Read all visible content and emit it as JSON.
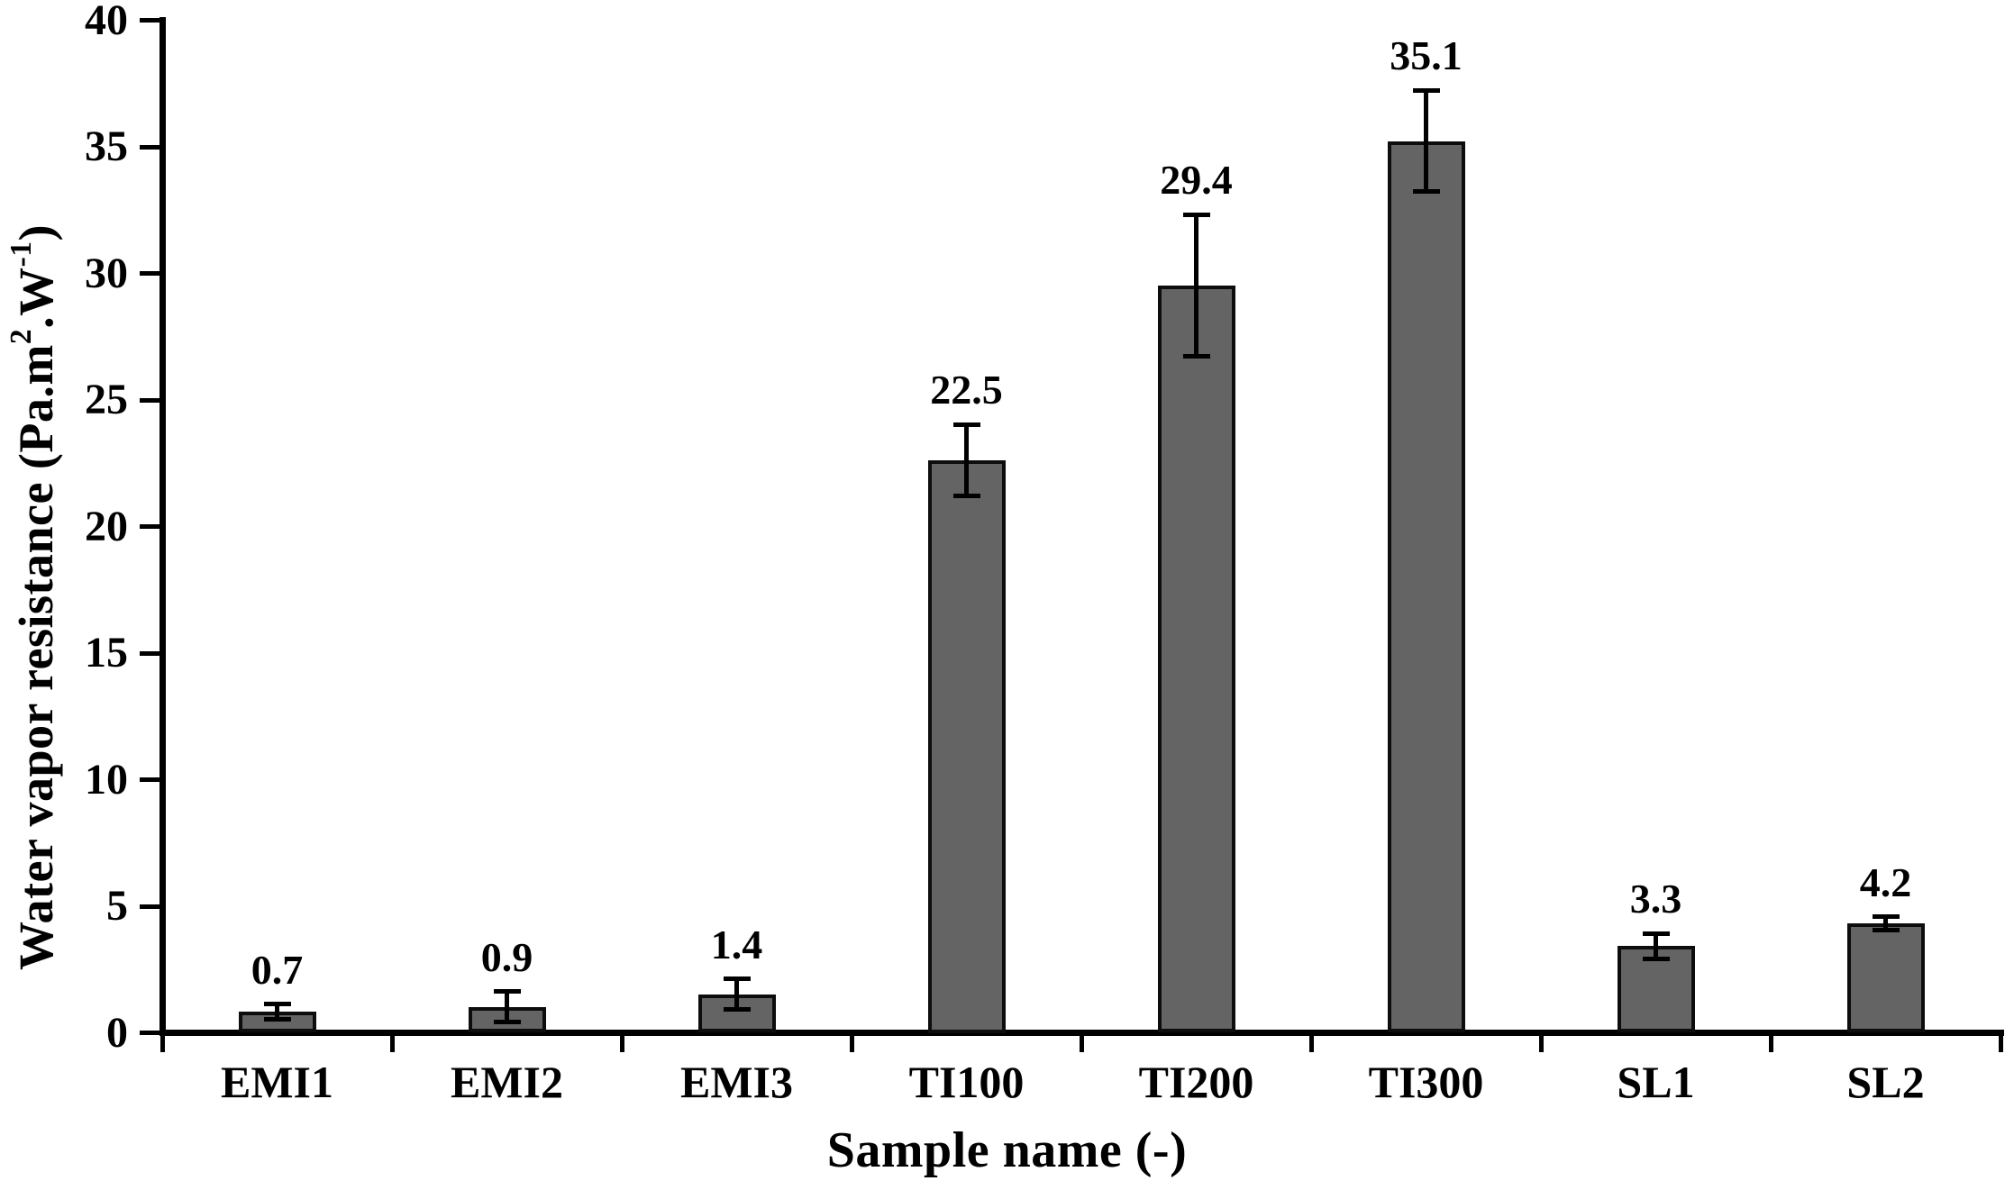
{
  "chart_data": {
    "type": "bar",
    "title": "",
    "xlabel": "Sample name (-)",
    "ylabel": "Water vapor resistance (Pa.m2.W-1)",
    "ylabel_parts": {
      "p1": "Water vapor resistance (Pa.m",
      "s1": "2",
      "p2": ".W",
      "s2": "-1",
      "p3": ")"
    },
    "categories": [
      "EMI1",
      "EMI2",
      "EMI3",
      "TI100",
      "TI200",
      "TI300",
      "SL1",
      "SL2"
    ],
    "values": [
      0.7,
      0.9,
      1.4,
      22.5,
      29.4,
      35.1,
      3.3,
      4.2
    ],
    "value_labels": [
      "0.7",
      "0.9",
      "1.4",
      "22.5",
      "29.4",
      "35.1",
      "3.3",
      "4.2"
    ],
    "errors": [
      0.3,
      0.6,
      0.6,
      1.4,
      2.8,
      2.0,
      0.5,
      0.25
    ],
    "y_ticks": [
      0,
      5,
      10,
      15,
      20,
      25,
      30,
      35,
      40
    ],
    "ylim": [
      0,
      40
    ],
    "grid": false,
    "legend": null,
    "bar_color": "#646464",
    "bar_border_color": "#0d0d0d",
    "axis_color": "#000000",
    "text_color": "#000000",
    "background_color": "#ffffff"
  }
}
